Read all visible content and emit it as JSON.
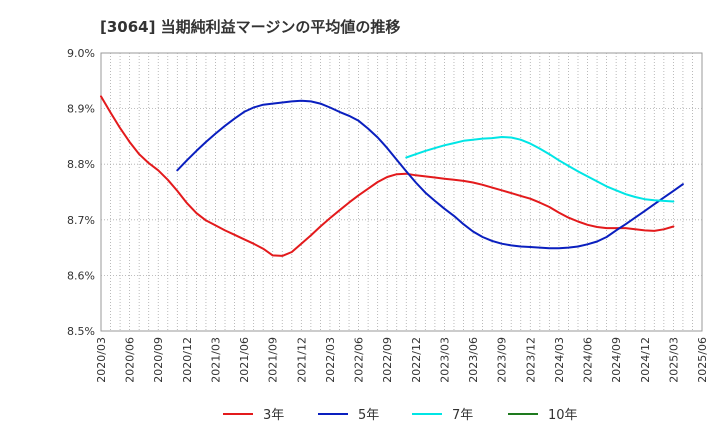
{
  "chart_data": {
    "type": "line",
    "title": "[3064]  当期純利益マージンの平均値の推移",
    "xlabel": "",
    "ylabel": "",
    "x_ticks": [
      "2020/03",
      "2020/06",
      "2020/09",
      "2020/12",
      "2021/03",
      "2021/06",
      "2021/09",
      "2021/12",
      "2022/03",
      "2022/06",
      "2022/09",
      "2022/12",
      "2023/03",
      "2023/06",
      "2023/09",
      "2023/12",
      "2024/03",
      "2024/06",
      "2024/09",
      "2024/12",
      "2025/03",
      "2025/06"
    ],
    "y_ticks": [
      "8.5%",
      "8.6%",
      "8.7%",
      "8.8%",
      "8.9%",
      "9.0%"
    ],
    "ylim": [
      8.5,
      9.0
    ],
    "grid": true,
    "legend_position": "bottom",
    "series": [
      {
        "name": "3年",
        "color": "#e31a1c",
        "points": [
          [
            "2020/03",
            8.922
          ],
          [
            "2020/04",
            8.893
          ],
          [
            "2020/05",
            8.865
          ],
          [
            "2020/06",
            8.84
          ],
          [
            "2020/07",
            8.818
          ],
          [
            "2020/08",
            8.802
          ],
          [
            "2020/09",
            8.789
          ],
          [
            "2020/10",
            8.772
          ],
          [
            "2020/11",
            8.752
          ],
          [
            "2020/12",
            8.73
          ],
          [
            "2021/01",
            8.712
          ],
          [
            "2021/02",
            8.699
          ],
          [
            "2021/03",
            8.69
          ],
          [
            "2021/04",
            8.681
          ],
          [
            "2021/05",
            8.673
          ],
          [
            "2021/06",
            8.665
          ],
          [
            "2021/07",
            8.657
          ],
          [
            "2021/08",
            8.648
          ],
          [
            "2021/09",
            8.636
          ],
          [
            "2021/10",
            8.635
          ],
          [
            "2021/11",
            8.642
          ],
          [
            "2021/12",
            8.657
          ],
          [
            "2022/01",
            8.672
          ],
          [
            "2022/02",
            8.688
          ],
          [
            "2022/03",
            8.703
          ],
          [
            "2022/04",
            8.717
          ],
          [
            "2022/05",
            8.731
          ],
          [
            "2022/06",
            8.744
          ],
          [
            "2022/07",
            8.756
          ],
          [
            "2022/08",
            8.768
          ],
          [
            "2022/09",
            8.777
          ],
          [
            "2022/10",
            8.782
          ],
          [
            "2022/11",
            8.783
          ],
          [
            "2022/12",
            8.78
          ],
          [
            "2023/01",
            8.778
          ],
          [
            "2023/02",
            8.776
          ],
          [
            "2023/03",
            8.774
          ],
          [
            "2023/04",
            8.772
          ],
          [
            "2023/05",
            8.77
          ],
          [
            "2023/06",
            8.767
          ],
          [
            "2023/07",
            8.763
          ],
          [
            "2023/08",
            8.758
          ],
          [
            "2023/09",
            8.753
          ],
          [
            "2023/10",
            8.748
          ],
          [
            "2023/11",
            8.743
          ],
          [
            "2023/12",
            8.738
          ],
          [
            "2024/01",
            8.731
          ],
          [
            "2024/02",
            8.723
          ],
          [
            "2024/03",
            8.713
          ],
          [
            "2024/04",
            8.704
          ],
          [
            "2024/05",
            8.697
          ],
          [
            "2024/06",
            8.691
          ],
          [
            "2024/07",
            8.687
          ],
          [
            "2024/08",
            8.685
          ],
          [
            "2024/09",
            8.685
          ],
          [
            "2024/10",
            8.685
          ],
          [
            "2024/11",
            8.683
          ],
          [
            "2024/12",
            8.681
          ],
          [
            "2025/01",
            8.68
          ],
          [
            "2025/02",
            8.683
          ],
          [
            "2025/03",
            8.688
          ]
        ]
      },
      {
        "name": "5年",
        "color": "#0a1fbf",
        "points": [
          [
            "2020/11",
            8.789
          ],
          [
            "2020/12",
            8.807
          ],
          [
            "2021/01",
            8.824
          ],
          [
            "2021/02",
            8.84
          ],
          [
            "2021/03",
            8.855
          ],
          [
            "2021/04",
            8.869
          ],
          [
            "2021/05",
            8.882
          ],
          [
            "2021/06",
            8.894
          ],
          [
            "2021/07",
            8.902
          ],
          [
            "2021/08",
            8.907
          ],
          [
            "2021/09",
            8.909
          ],
          [
            "2021/10",
            8.911
          ],
          [
            "2021/11",
            8.913
          ],
          [
            "2021/12",
            8.914
          ],
          [
            "2022/01",
            8.913
          ],
          [
            "2022/02",
            8.909
          ],
          [
            "2022/03",
            8.902
          ],
          [
            "2022/04",
            8.894
          ],
          [
            "2022/05",
            8.887
          ],
          [
            "2022/06",
            8.878
          ],
          [
            "2022/07",
            8.864
          ],
          [
            "2022/08",
            8.848
          ],
          [
            "2022/09",
            8.829
          ],
          [
            "2022/10",
            8.808
          ],
          [
            "2022/11",
            8.787
          ],
          [
            "2022/12",
            8.767
          ],
          [
            "2023/01",
            8.749
          ],
          [
            "2023/02",
            8.734
          ],
          [
            "2023/03",
            8.72
          ],
          [
            "2023/04",
            8.707
          ],
          [
            "2023/05",
            8.692
          ],
          [
            "2023/06",
            8.679
          ],
          [
            "2023/07",
            8.669
          ],
          [
            "2023/08",
            8.662
          ],
          [
            "2023/09",
            8.657
          ],
          [
            "2023/10",
            8.654
          ],
          [
            "2023/11",
            8.652
          ],
          [
            "2023/12",
            8.651
          ],
          [
            "2024/01",
            8.65
          ],
          [
            "2024/02",
            8.649
          ],
          [
            "2024/03",
            8.649
          ],
          [
            "2024/04",
            8.65
          ],
          [
            "2024/05",
            8.652
          ],
          [
            "2024/06",
            8.656
          ],
          [
            "2024/07",
            8.661
          ],
          [
            "2024/08",
            8.669
          ],
          [
            "2024/09",
            8.681
          ],
          [
            "2024/10",
            8.692
          ],
          [
            "2024/11",
            8.704
          ],
          [
            "2024/12",
            8.716
          ],
          [
            "2025/01",
            8.728
          ],
          [
            "2025/02",
            8.74
          ],
          [
            "2025/03",
            8.752
          ],
          [
            "2025/04",
            8.764
          ]
        ]
      },
      {
        "name": "7年",
        "color": "#00e5e5",
        "points": [
          [
            "2022/11",
            8.812
          ],
          [
            "2022/12",
            8.818
          ],
          [
            "2023/01",
            8.824
          ],
          [
            "2023/02",
            8.829
          ],
          [
            "2023/03",
            8.834
          ],
          [
            "2023/04",
            8.838
          ],
          [
            "2023/05",
            8.842
          ],
          [
            "2023/06",
            8.844
          ],
          [
            "2023/07",
            8.846
          ],
          [
            "2023/08",
            8.847
          ],
          [
            "2023/09",
            8.849
          ],
          [
            "2023/10",
            8.848
          ],
          [
            "2023/11",
            8.844
          ],
          [
            "2023/12",
            8.837
          ],
          [
            "2024/01",
            8.828
          ],
          [
            "2024/02",
            8.818
          ],
          [
            "2024/03",
            8.807
          ],
          [
            "2024/04",
            8.797
          ],
          [
            "2024/05",
            8.787
          ],
          [
            "2024/06",
            8.778
          ],
          [
            "2024/07",
            8.769
          ],
          [
            "2024/08",
            8.76
          ],
          [
            "2024/09",
            8.753
          ],
          [
            "2024/10",
            8.746
          ],
          [
            "2024/11",
            8.741
          ],
          [
            "2024/12",
            8.737
          ],
          [
            "2025/01",
            8.735
          ],
          [
            "2025/02",
            8.734
          ],
          [
            "2025/03",
            8.733
          ]
        ]
      },
      {
        "name": "10年",
        "color": "#1e7a1e",
        "points": []
      }
    ]
  }
}
